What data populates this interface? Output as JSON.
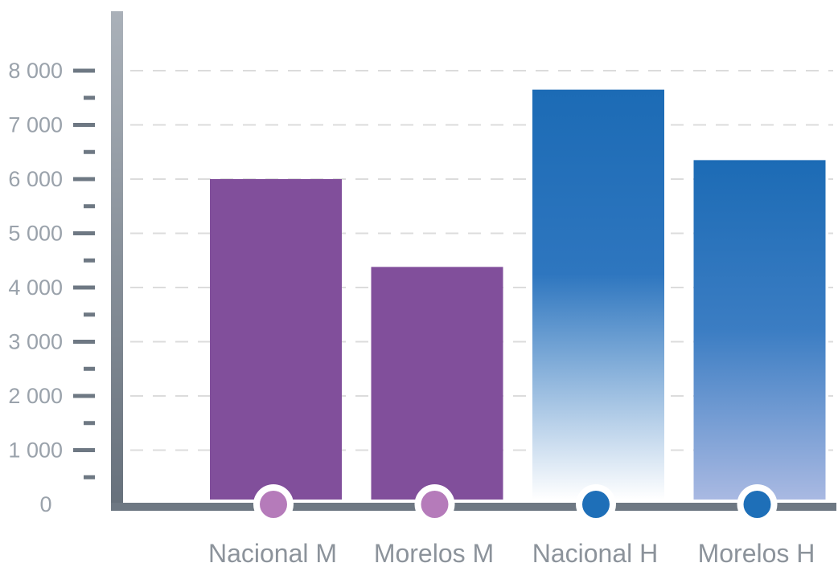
{
  "chart_data": {
    "type": "bar",
    "title": "",
    "xlabel": "",
    "ylabel": "",
    "categories": [
      "Nacional M",
      "Morelos M",
      "Nacional H",
      "Morelos H"
    ],
    "values": [
      6000,
      4380,
      7650,
      6350
    ],
    "ylim": [
      0,
      8000
    ],
    "yticks": [
      0,
      1000,
      2000,
      3000,
      4000,
      5000,
      6000,
      7000,
      8000
    ],
    "ytick_labels": [
      "0",
      "1 000",
      "2 000",
      "3 000",
      "4 000",
      "5 000",
      "6 000",
      "7 000",
      "8 000"
    ],
    "grid": true,
    "legend": "none",
    "colors": {
      "women_bar": "#814f9b",
      "women_marker": "#b57bba",
      "men_bar_top": "#1c6bb5",
      "men_bar_bottom_nacional": "#ffffff",
      "men_bar_bottom_morelos": "#a9b9e2",
      "men_marker": "#1e6fb8",
      "axis": "#6e7883",
      "grid": "#dcdcdc",
      "label": "#8c939b"
    }
  }
}
